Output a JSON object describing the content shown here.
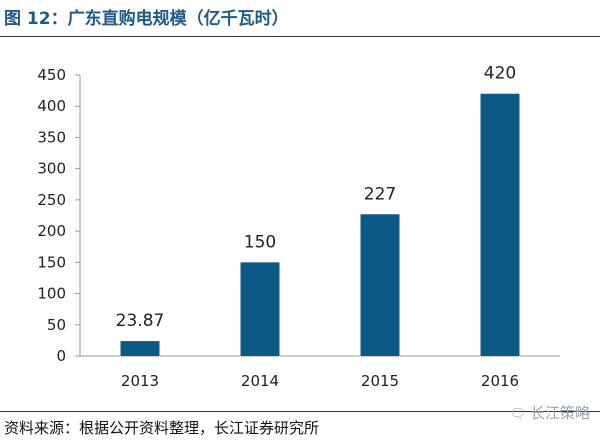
{
  "figure": {
    "title": "图 12：广东直购电规模（亿千瓦时）",
    "source": "资料来源：根据公开资料整理，长江证券研究所",
    "watermark": "长江策略"
  },
  "colors": {
    "bar": "#0d5a86",
    "title": "#1f5a86",
    "axis": "#999999"
  },
  "chart_data": {
    "type": "bar",
    "title": "",
    "xlabel": "",
    "ylabel": "",
    "categories": [
      "2013",
      "2014",
      "2015",
      "2016"
    ],
    "values": [
      23.87,
      150,
      227,
      420
    ],
    "value_labels": [
      "23.87",
      "150",
      "227",
      "420"
    ],
    "ylim": [
      0,
      450
    ],
    "yticks": [
      0,
      50,
      100,
      150,
      200,
      250,
      300,
      350,
      400,
      450
    ],
    "grid": false,
    "legend": "none"
  }
}
